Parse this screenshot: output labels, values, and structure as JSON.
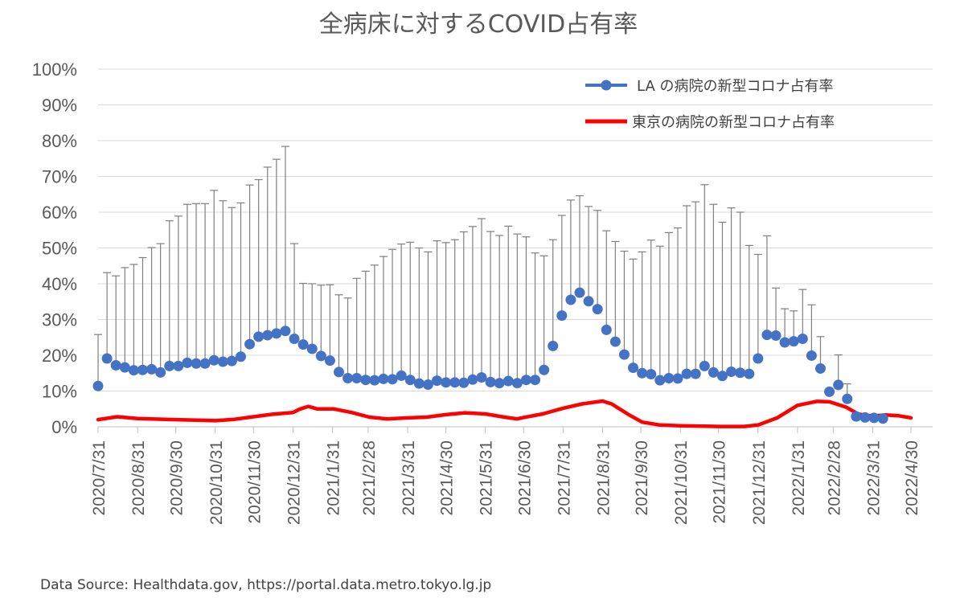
{
  "chart_data": {
    "type": "line",
    "title": "全病床に対するCOVID占有率",
    "source": "Data Source: Healthdata.gov, https://portal.data.metro.tokyo.lg.jp",
    "ylim": [
      0,
      100
    ],
    "y_ticks": [
      "0%",
      "10%",
      "20%",
      "30%",
      "40%",
      "50%",
      "60%",
      "70%",
      "80%",
      "90%",
      "100%"
    ],
    "x_range": [
      "2020-07-31",
      "2022-04-30"
    ],
    "x_ticks": [
      {
        "date": "2020-07-31",
        "label": "2020/7/31"
      },
      {
        "date": "2020-08-31",
        "label": "2020/8/31"
      },
      {
        "date": "2020-09-30",
        "label": "2020/9/30"
      },
      {
        "date": "2020-10-31",
        "label": "2020/10/31"
      },
      {
        "date": "2020-11-30",
        "label": "2020/11/30"
      },
      {
        "date": "2020-12-31",
        "label": "2020/12/31"
      },
      {
        "date": "2021-01-31",
        "label": "2021/1/31"
      },
      {
        "date": "2021-02-28",
        "label": "2021/2/28"
      },
      {
        "date": "2021-03-31",
        "label": "2021/3/31"
      },
      {
        "date": "2021-04-30",
        "label": "2021/4/30"
      },
      {
        "date": "2021-05-31",
        "label": "2021/5/31"
      },
      {
        "date": "2021-06-30",
        "label": "2021/6/30"
      },
      {
        "date": "2021-07-31",
        "label": "2021/7/31"
      },
      {
        "date": "2021-08-31",
        "label": "2021/8/31"
      },
      {
        "date": "2021-09-30",
        "label": "2021/9/30"
      },
      {
        "date": "2021-10-31",
        "label": "2021/10/31"
      },
      {
        "date": "2021-11-30",
        "label": "2021/11/30"
      },
      {
        "date": "2021-12-31",
        "label": "2021/12/31"
      },
      {
        "date": "2022-01-31",
        "label": "2022/1/31"
      },
      {
        "date": "2022-02-28",
        "label": "2022/2/28"
      },
      {
        "date": "2022-03-31",
        "label": "2022/3/31"
      },
      {
        "date": "2022-04-30",
        "label": "2022/4/30"
      }
    ],
    "series": [
      {
        "name": "LA の病院の新型コロナ占有率",
        "color": "#4472c4",
        "marker": "circle",
        "line": "none",
        "error_bar": "upper",
        "points": [
          {
            "x": "2020-07-31",
            "y": 11.4,
            "upper": 25.8
          },
          {
            "x": "2020-08-07",
            "y": 19.1,
            "upper": 43.1
          },
          {
            "x": "2020-08-14",
            "y": 17.2,
            "upper": 42.2
          },
          {
            "x": "2020-08-21",
            "y": 16.6,
            "upper": 44.5
          },
          {
            "x": "2020-08-28",
            "y": 15.8,
            "upper": 45.4
          },
          {
            "x": "2020-09-04",
            "y": 15.9,
            "upper": 47.3
          },
          {
            "x": "2020-09-11",
            "y": 16.1,
            "upper": 50.1
          },
          {
            "x": "2020-09-18",
            "y": 15.2,
            "upper": 51.2
          },
          {
            "x": "2020-09-25",
            "y": 17.0,
            "upper": 57.6
          },
          {
            "x": "2020-10-02",
            "y": 17.0,
            "upper": 58.9
          },
          {
            "x": "2020-10-09",
            "y": 17.9,
            "upper": 62.2
          },
          {
            "x": "2020-10-16",
            "y": 17.7,
            "upper": 62.4
          },
          {
            "x": "2020-10-23",
            "y": 17.7,
            "upper": 62.4
          },
          {
            "x": "2020-10-30",
            "y": 18.6,
            "upper": 66.1
          },
          {
            "x": "2020-11-06",
            "y": 18.2,
            "upper": 63.2
          },
          {
            "x": "2020-11-13",
            "y": 18.4,
            "upper": 61.3
          },
          {
            "x": "2020-11-20",
            "y": 19.6,
            "upper": 62.6
          },
          {
            "x": "2020-11-27",
            "y": 23.1,
            "upper": 67.6
          },
          {
            "x": "2020-12-04",
            "y": 25.2,
            "upper": 69.1
          },
          {
            "x": "2020-12-11",
            "y": 25.6,
            "upper": 72.6
          },
          {
            "x": "2020-12-18",
            "y": 26.1,
            "upper": 74.8
          },
          {
            "x": "2020-12-25",
            "y": 26.8,
            "upper": 78.4
          },
          {
            "x": "2021-01-01",
            "y": 24.6,
            "upper": 51.2
          },
          {
            "x": "2021-01-08",
            "y": 23.0,
            "upper": 40.1
          },
          {
            "x": "2021-01-15",
            "y": 21.8,
            "upper": 40.0
          },
          {
            "x": "2021-01-22",
            "y": 19.8,
            "upper": 39.6
          },
          {
            "x": "2021-01-29",
            "y": 18.5,
            "upper": 39.7
          },
          {
            "x": "2021-02-05",
            "y": 15.3,
            "upper": 36.9
          },
          {
            "x": "2021-02-12",
            "y": 13.6,
            "upper": 36.0
          },
          {
            "x": "2021-02-19",
            "y": 13.6,
            "upper": 41.5
          },
          {
            "x": "2021-02-26",
            "y": 13.1,
            "upper": 43.5
          },
          {
            "x": "2021-03-05",
            "y": 13.0,
            "upper": 45.2
          },
          {
            "x": "2021-03-12",
            "y": 13.4,
            "upper": 47.6
          },
          {
            "x": "2021-03-19",
            "y": 13.3,
            "upper": 49.6
          },
          {
            "x": "2021-03-26",
            "y": 14.3,
            "upper": 51.1
          },
          {
            "x": "2021-04-02",
            "y": 13.1,
            "upper": 51.6
          },
          {
            "x": "2021-04-09",
            "y": 12.1,
            "upper": 50.0
          },
          {
            "x": "2021-04-16",
            "y": 11.8,
            "upper": 48.9
          },
          {
            "x": "2021-04-23",
            "y": 12.9,
            "upper": 52.0
          },
          {
            "x": "2021-04-30",
            "y": 12.4,
            "upper": 51.5
          },
          {
            "x": "2021-05-07",
            "y": 12.4,
            "upper": 52.3
          },
          {
            "x": "2021-05-14",
            "y": 12.3,
            "upper": 54.5
          },
          {
            "x": "2021-05-21",
            "y": 13.2,
            "upper": 56.0
          },
          {
            "x": "2021-05-28",
            "y": 13.8,
            "upper": 58.2
          },
          {
            "x": "2021-06-04",
            "y": 12.5,
            "upper": 54.6
          },
          {
            "x": "2021-06-11",
            "y": 12.2,
            "upper": 53.5
          },
          {
            "x": "2021-06-18",
            "y": 12.8,
            "upper": 56.1
          },
          {
            "x": "2021-06-25",
            "y": 12.2,
            "upper": 53.9
          },
          {
            "x": "2021-07-02",
            "y": 13.1,
            "upper": 53.1
          },
          {
            "x": "2021-07-09",
            "y": 13.1,
            "upper": 48.6
          },
          {
            "x": "2021-07-16",
            "y": 15.9,
            "upper": 47.8
          },
          {
            "x": "2021-07-23",
            "y": 22.6,
            "upper": 52.3
          },
          {
            "x": "2021-07-30",
            "y": 31.1,
            "upper": 59.1
          },
          {
            "x": "2021-08-06",
            "y": 35.5,
            "upper": 63.4
          },
          {
            "x": "2021-08-13",
            "y": 37.5,
            "upper": 64.6
          },
          {
            "x": "2021-08-20",
            "y": 35.1,
            "upper": 61.6
          },
          {
            "x": "2021-08-27",
            "y": 32.9,
            "upper": 60.5
          },
          {
            "x": "2021-09-03",
            "y": 27.1,
            "upper": 54.8
          },
          {
            "x": "2021-09-10",
            "y": 23.8,
            "upper": 51.8
          },
          {
            "x": "2021-09-17",
            "y": 20.2,
            "upper": 49.1
          },
          {
            "x": "2021-09-24",
            "y": 16.5,
            "upper": 46.9
          },
          {
            "x": "2021-10-01",
            "y": 15.0,
            "upper": 48.9
          },
          {
            "x": "2021-10-08",
            "y": 14.7,
            "upper": 52.2
          },
          {
            "x": "2021-10-15",
            "y": 13.0,
            "upper": 50.5
          },
          {
            "x": "2021-10-22",
            "y": 13.6,
            "upper": 54.3
          },
          {
            "x": "2021-10-29",
            "y": 13.5,
            "upper": 55.6
          },
          {
            "x": "2021-11-05",
            "y": 14.8,
            "upper": 61.8
          },
          {
            "x": "2021-11-12",
            "y": 14.8,
            "upper": 62.9
          },
          {
            "x": "2021-11-19",
            "y": 17.0,
            "upper": 67.7
          },
          {
            "x": "2021-11-26",
            "y": 15.2,
            "upper": 62.2
          },
          {
            "x": "2021-12-03",
            "y": 14.2,
            "upper": 57.2
          },
          {
            "x": "2021-12-10",
            "y": 15.4,
            "upper": 61.2
          },
          {
            "x": "2021-12-17",
            "y": 15.1,
            "upper": 60.0
          },
          {
            "x": "2021-12-24",
            "y": 14.8,
            "upper": 50.7
          },
          {
            "x": "2021-12-31",
            "y": 19.1,
            "upper": 48.2
          },
          {
            "x": "2022-01-07",
            "y": 25.7,
            "upper": 53.4
          },
          {
            "x": "2022-01-14",
            "y": 25.5,
            "upper": 38.8
          },
          {
            "x": "2022-01-21",
            "y": 23.6,
            "upper": 33.0
          },
          {
            "x": "2022-01-28",
            "y": 23.9,
            "upper": 32.4
          },
          {
            "x": "2022-02-04",
            "y": 24.6,
            "upper": 38.4
          },
          {
            "x": "2022-02-11",
            "y": 19.9,
            "upper": 34.1
          },
          {
            "x": "2022-02-18",
            "y": 16.3,
            "upper": 25.2
          },
          {
            "x": "2022-02-25",
            "y": 9.8,
            "upper": 9.8
          },
          {
            "x": "2022-03-04",
            "y": 11.7,
            "upper": 20.1
          },
          {
            "x": "2022-03-11",
            "y": 7.8,
            "upper": 12.0
          },
          {
            "x": "2022-03-18",
            "y": 2.9,
            "upper": 2.9
          },
          {
            "x": "2022-03-25",
            "y": 2.6,
            "upper": 2.6
          },
          {
            "x": "2022-04-01",
            "y": 2.5,
            "upper": 2.5
          },
          {
            "x": "2022-04-08",
            "y": 2.3,
            "upper": 2.3
          }
        ]
      },
      {
        "name": "東京の病院の新型コロナ占有率",
        "color": "#ff0000",
        "marker": "none",
        "line": "solid",
        "points": [
          {
            "x": "2020-07-31",
            "y": 2.0
          },
          {
            "x": "2020-08-15",
            "y": 2.8
          },
          {
            "x": "2020-08-31",
            "y": 2.3
          },
          {
            "x": "2020-09-30",
            "y": 2.0
          },
          {
            "x": "2020-10-31",
            "y": 1.7
          },
          {
            "x": "2020-11-15",
            "y": 2.1
          },
          {
            "x": "2020-11-30",
            "y": 2.8
          },
          {
            "x": "2020-12-15",
            "y": 3.5
          },
          {
            "x": "2020-12-31",
            "y": 4.0
          },
          {
            "x": "2021-01-05",
            "y": 4.9
          },
          {
            "x": "2021-01-12",
            "y": 5.7
          },
          {
            "x": "2021-01-19",
            "y": 5.0
          },
          {
            "x": "2021-02-01",
            "y": 5.0
          },
          {
            "x": "2021-02-15",
            "y": 4.0
          },
          {
            "x": "2021-03-01",
            "y": 2.7
          },
          {
            "x": "2021-03-15",
            "y": 2.2
          },
          {
            "x": "2021-03-31",
            "y": 2.5
          },
          {
            "x": "2021-04-15",
            "y": 2.7
          },
          {
            "x": "2021-04-30",
            "y": 3.4
          },
          {
            "x": "2021-05-15",
            "y": 3.9
          },
          {
            "x": "2021-05-31",
            "y": 3.6
          },
          {
            "x": "2021-06-15",
            "y": 2.7
          },
          {
            "x": "2021-06-25",
            "y": 2.2
          },
          {
            "x": "2021-06-30",
            "y": 2.6
          },
          {
            "x": "2021-07-15",
            "y": 3.6
          },
          {
            "x": "2021-07-31",
            "y": 5.2
          },
          {
            "x": "2021-08-15",
            "y": 6.4
          },
          {
            "x": "2021-08-31",
            "y": 7.2
          },
          {
            "x": "2021-09-07",
            "y": 6.4
          },
          {
            "x": "2021-09-20",
            "y": 3.5
          },
          {
            "x": "2021-10-01",
            "y": 1.3
          },
          {
            "x": "2021-10-15",
            "y": 0.5
          },
          {
            "x": "2021-10-31",
            "y": 0.3
          },
          {
            "x": "2021-11-30",
            "y": 0.1
          },
          {
            "x": "2021-12-20",
            "y": 0.1
          },
          {
            "x": "2021-12-31",
            "y": 0.5
          },
          {
            "x": "2022-01-15",
            "y": 2.5
          },
          {
            "x": "2022-01-31",
            "y": 6.0
          },
          {
            "x": "2022-02-15",
            "y": 7.1
          },
          {
            "x": "2022-02-25",
            "y": 7.0
          },
          {
            "x": "2022-03-10",
            "y": 5.5
          },
          {
            "x": "2022-03-20",
            "y": 3.5
          },
          {
            "x": "2022-03-31",
            "y": 3.0
          },
          {
            "x": "2022-04-10",
            "y": 3.3
          },
          {
            "x": "2022-04-20",
            "y": 3.1
          },
          {
            "x": "2022-04-30",
            "y": 2.5
          }
        ]
      }
    ]
  }
}
